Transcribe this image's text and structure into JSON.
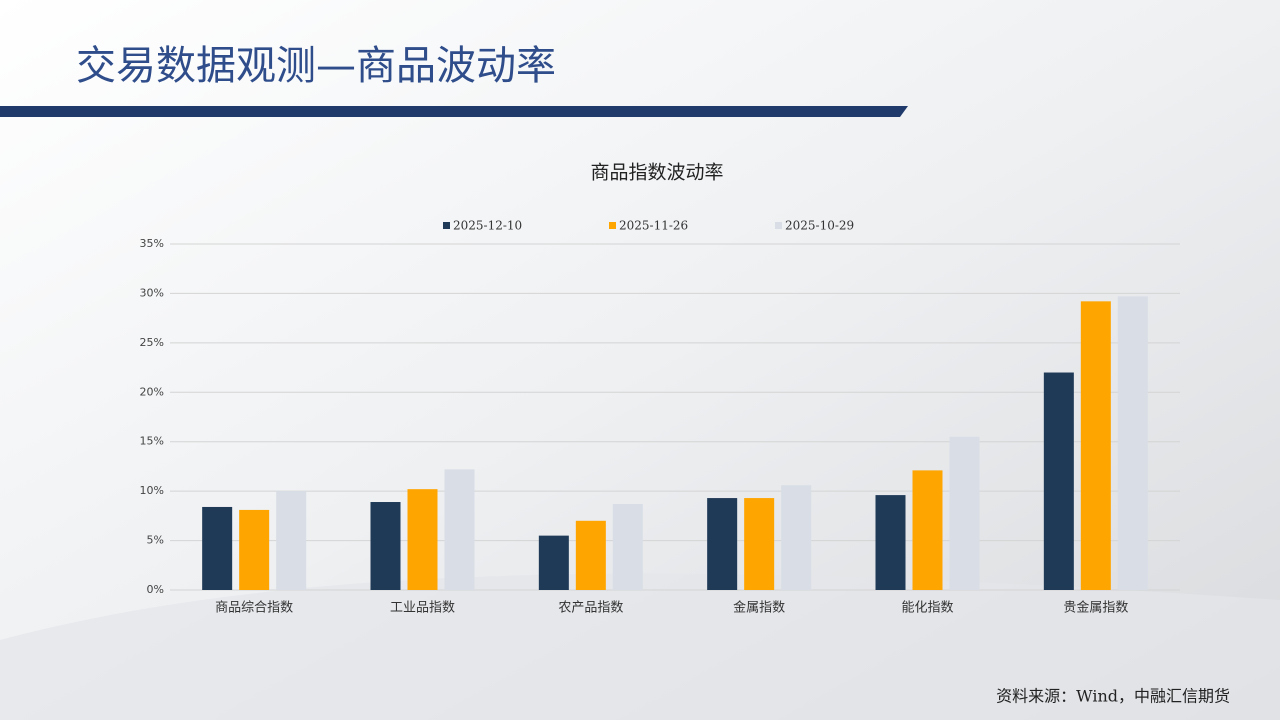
{
  "header": {
    "title": "交易数据观测—商品波动率"
  },
  "chart_data": {
    "type": "bar",
    "title": "商品指数波动率",
    "categories": [
      "商品综合指数",
      "工业品指数",
      "农产品指数",
      "金属指数",
      "能化指数",
      "贵金属指数"
    ],
    "series": [
      {
        "name": "2025-12-10",
        "color": "#1f3a57",
        "values": [
          8.4,
          8.9,
          5.5,
          9.3,
          9.6,
          22.0
        ]
      },
      {
        "name": "2025-11-26",
        "color": "#ffa500",
        "values": [
          8.1,
          10.2,
          7.0,
          9.3,
          12.1,
          29.2
        ]
      },
      {
        "name": "2025-10-29",
        "color": "#d9dee6",
        "values": [
          10.0,
          12.2,
          8.7,
          10.6,
          15.5,
          29.7
        ]
      }
    ],
    "ylim": [
      0,
      35
    ],
    "yticks": [
      {
        "value": 0,
        "label": "0%"
      },
      {
        "value": 5,
        "label": "5%"
      },
      {
        "value": 10,
        "label": "10%"
      },
      {
        "value": 15,
        "label": "15%"
      },
      {
        "value": 20,
        "label": "20%"
      },
      {
        "value": 25,
        "label": "25%"
      },
      {
        "value": 30,
        "label": "30%"
      },
      {
        "value": 35,
        "label": "35%"
      }
    ],
    "grid": true,
    "legend": "top"
  },
  "source": "资料来源：Wind，中融汇信期货"
}
